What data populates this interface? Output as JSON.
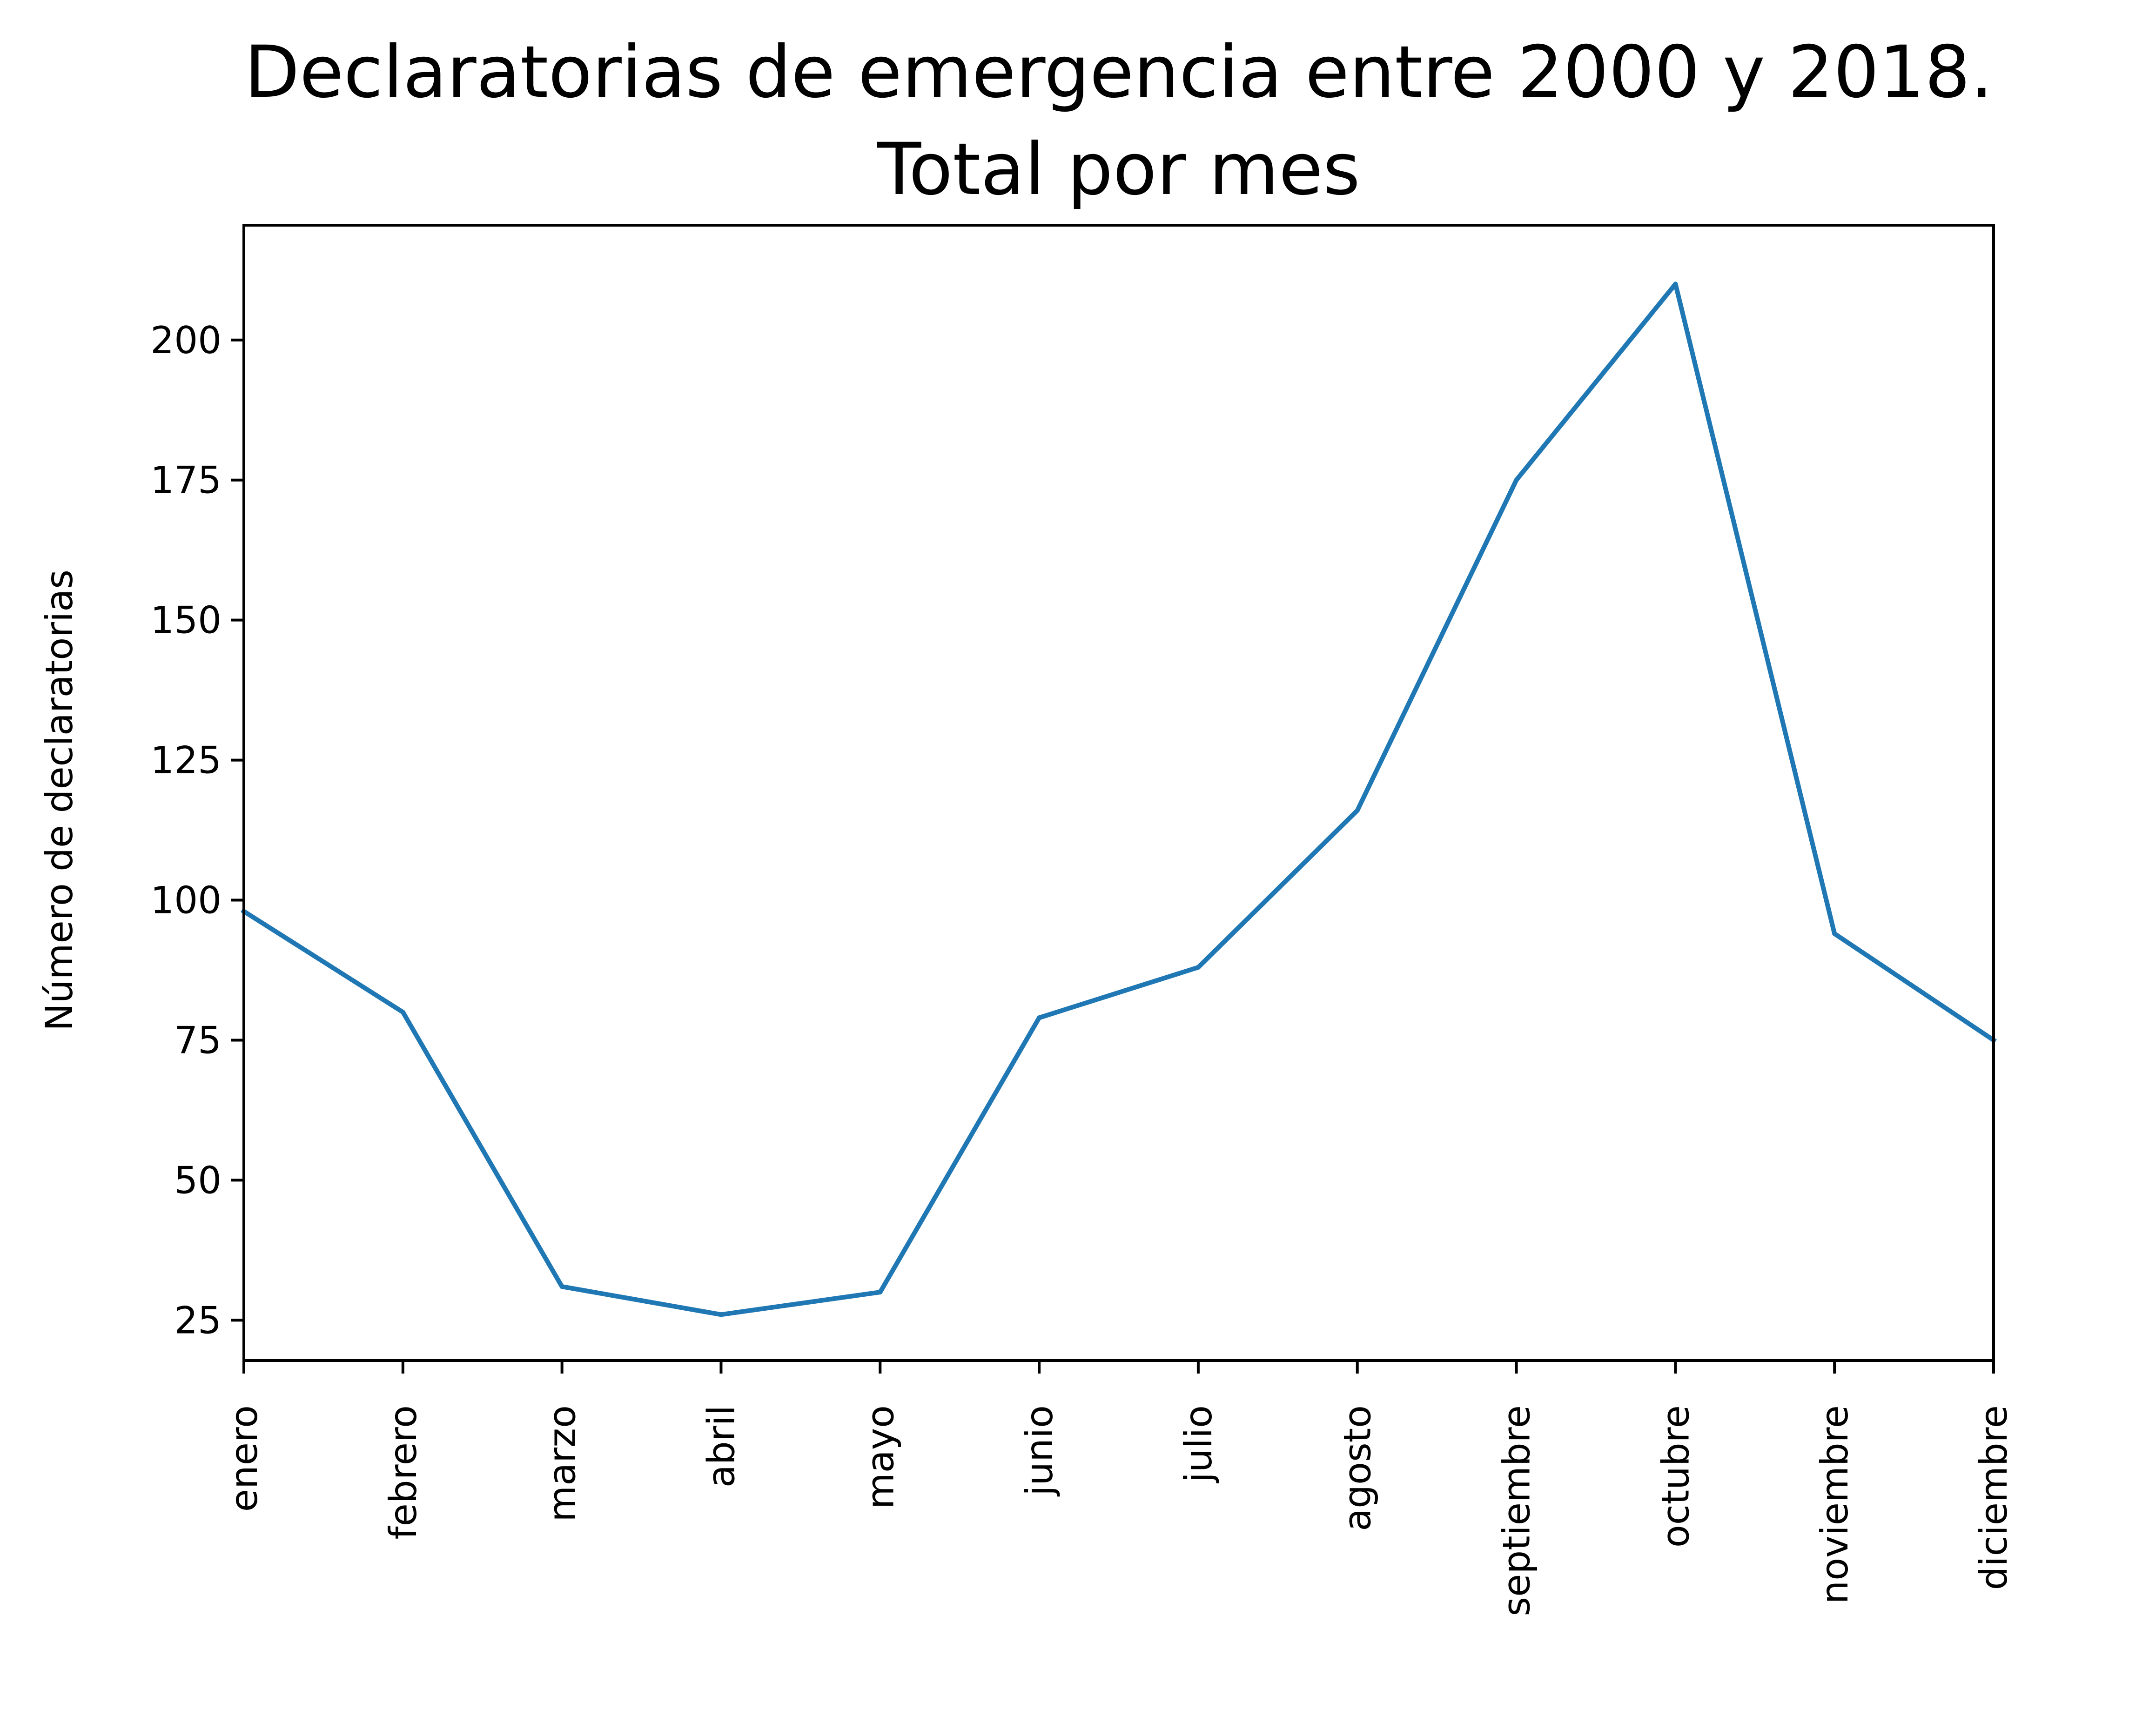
{
  "chart_data": {
    "type": "line",
    "title_line1": "Declaratorias de emergencia entre 2000 y 2018.",
    "title_line2": "Total por mes",
    "xlabel": "",
    "ylabel": "Número de declaratorias",
    "categories": [
      "enero",
      "febrero",
      "marzo",
      "abril",
      "mayo",
      "junio",
      "julio",
      "agosto",
      "septiembre",
      "octubre",
      "noviembre",
      "diciembre"
    ],
    "series": [
      {
        "values": [
          98,
          80,
          31,
          26,
          30,
          79,
          88,
          116,
          175,
          210,
          94,
          75
        ],
        "color": "#1f77b4"
      }
    ],
    "ylim": [
      17.8,
      220.5
    ],
    "yticks": [
      25,
      50,
      75,
      100,
      125,
      150,
      175,
      200
    ],
    "grid": false,
    "legend": "none"
  }
}
